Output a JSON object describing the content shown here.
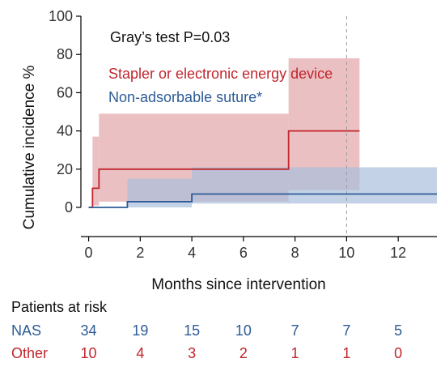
{
  "chart_data": {
    "type": "line",
    "title": "",
    "xlabel": "Months since intervention",
    "ylabel": "Cumulative incidence %",
    "xlim": [
      -0.3,
      13.5
    ],
    "ylim": [
      0,
      100
    ],
    "xticks": [
      0,
      2,
      4,
      6,
      8,
      10,
      12
    ],
    "yticks": [
      0,
      20,
      40,
      60,
      80,
      100
    ],
    "grid": false,
    "reference_line_x": 10,
    "annotation": "Gray’s test P=0.03",
    "series": [
      {
        "name": "Stapler or electronic energy device",
        "color": "#c0262d",
        "band_color": "#e3a5aa",
        "steps": [
          [
            0,
            0
          ],
          [
            0.15,
            0
          ],
          [
            0.15,
            10
          ],
          [
            0.4,
            10
          ],
          [
            0.4,
            20
          ],
          [
            7.75,
            20
          ],
          [
            7.75,
            40
          ],
          [
            10.5,
            40
          ]
        ],
        "ci_steps": [
          [
            0.15,
            1,
            37
          ],
          [
            0.4,
            3,
            49
          ],
          [
            7.75,
            9,
            78
          ],
          [
            10.5,
            9,
            78
          ]
        ]
      },
      {
        "name": "Non-adsorbable suture*",
        "color": "#2d5b97",
        "band_color": "#a9bfdc",
        "steps": [
          [
            0,
            0
          ],
          [
            1.5,
            0
          ],
          [
            1.5,
            3
          ],
          [
            4,
            3
          ],
          [
            4,
            7
          ],
          [
            13.5,
            7
          ]
        ],
        "ci_steps": [
          [
            1.5,
            0,
            15
          ],
          [
            4,
            2,
            21
          ],
          [
            13.5,
            2,
            21
          ]
        ]
      }
    ]
  },
  "risk_table": {
    "title": "Patients at risk",
    "rows": [
      {
        "label": "NAS",
        "color": "#2d5b97",
        "values": [
          "34",
          "19",
          "15",
          "10",
          "7",
          "7",
          "5"
        ]
      },
      {
        "label": "Other",
        "color": "#c0262d",
        "values": [
          "10",
          "4",
          "3",
          "2",
          "1",
          "1",
          "0"
        ]
      }
    ]
  }
}
